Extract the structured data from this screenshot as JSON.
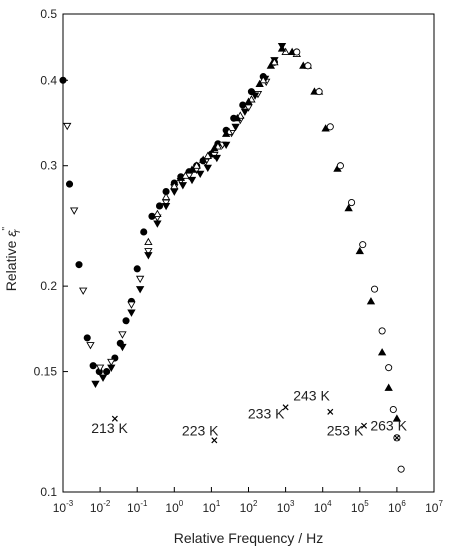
{
  "chart_data": {
    "type": "scatter",
    "title": "",
    "xlabel": "Relative Frequency / Hz",
    "ylabel": "Relative ε''ᵣ",
    "ylabel_parts": {
      "prefix": "Relative ",
      "symbol": "ε",
      "primes": "''",
      "subscript": "r"
    },
    "x_scale": "log",
    "y_scale": "log",
    "xlim": [
      0.001,
      10000000
    ],
    "ylim": [
      0.1,
      0.5
    ],
    "xticks": [
      {
        "value": 0.001,
        "base": "10",
        "exp": "-3"
      },
      {
        "value": 0.01,
        "base": "10",
        "exp": "-2"
      },
      {
        "value": 0.1,
        "base": "10",
        "exp": "-1"
      },
      {
        "value": 1,
        "base": "10",
        "exp": "0"
      },
      {
        "value": 10,
        "base": "10",
        "exp": "1"
      },
      {
        "value": 100,
        "base": "10",
        "exp": "2"
      },
      {
        "value": 1000,
        "base": "10",
        "exp": "3"
      },
      {
        "value": 10000,
        "base": "10",
        "exp": "4"
      },
      {
        "value": 100000,
        "base": "10",
        "exp": "5"
      },
      {
        "value": 1000000,
        "base": "10",
        "exp": "6"
      },
      {
        "value": 10000000,
        "base": "10",
        "exp": "7"
      }
    ],
    "yticks": [
      {
        "value": 0.1,
        "label": "0.1"
      },
      {
        "value": 0.15,
        "label": "0.15"
      },
      {
        "value": 0.2,
        "label": "0.2"
      },
      {
        "value": 0.3,
        "label": "0.3"
      },
      {
        "value": 0.4,
        "label": "0.4"
      },
      {
        "value": 0.5,
        "label": "0.5"
      }
    ],
    "grid": false,
    "legend": "none",
    "series": [
      {
        "marker": "filled-circle",
        "points": [
          [
            0.001,
            0.4
          ],
          [
            0.0015,
            0.282
          ],
          [
            0.0027,
            0.215
          ],
          [
            0.0045,
            0.168
          ],
          [
            0.0065,
            0.153
          ],
          [
            0.0095,
            0.15
          ],
          [
            0.015,
            0.15
          ],
          [
            0.025,
            0.157
          ],
          [
            0.035,
            0.165
          ],
          [
            0.05,
            0.178
          ],
          [
            0.07,
            0.19
          ],
          [
            0.1,
            0.212
          ],
          [
            0.15,
            0.24
          ],
          [
            0.25,
            0.253
          ],
          [
            0.4,
            0.262
          ],
          [
            0.6,
            0.275
          ],
          [
            1,
            0.283
          ],
          [
            1.5,
            0.289
          ],
          [
            2.5,
            0.294
          ],
          [
            4,
            0.3
          ],
          [
            6,
            0.305
          ],
          [
            10,
            0.312
          ],
          [
            15,
            0.323
          ],
          [
            25,
            0.338
          ],
          [
            40,
            0.352
          ],
          [
            70,
            0.368
          ],
          [
            120,
            0.385
          ],
          [
            250,
            0.405
          ],
          [
            500,
            0.425
          ]
        ]
      },
      {
        "marker": "open-triangle-down",
        "points": [
          [
            0.0013,
            0.343
          ],
          [
            0.002,
            0.258
          ],
          [
            0.0035,
            0.197
          ],
          [
            0.0055,
            0.164
          ],
          [
            0.01,
            0.152
          ],
          [
            0.02,
            0.155
          ],
          [
            0.04,
            0.17
          ],
          [
            0.07,
            0.188
          ],
          [
            0.12,
            0.205
          ],
          [
            0.2,
            0.225
          ],
          [
            0.35,
            0.252
          ],
          [
            0.6,
            0.265
          ],
          [
            1,
            0.279
          ],
          [
            1.5,
            0.285
          ],
          [
            2.5,
            0.29
          ],
          [
            4,
            0.296
          ],
          [
            7,
            0.304
          ],
          [
            12,
            0.311
          ],
          [
            20,
            0.322
          ],
          [
            35,
            0.335
          ],
          [
            60,
            0.35
          ],
          [
            100,
            0.365
          ],
          [
            180,
            0.382
          ],
          [
            300,
            0.398
          ]
        ]
      },
      {
        "marker": "filled-triangle-down",
        "points": [
          [
            0.0075,
            0.144
          ],
          [
            0.012,
            0.147
          ],
          [
            0.02,
            0.152
          ],
          [
            0.04,
            0.163
          ],
          [
            0.07,
            0.183
          ],
          [
            0.12,
            0.198
          ],
          [
            0.2,
            0.222
          ],
          [
            0.35,
            0.247
          ],
          [
            0.6,
            0.262
          ],
          [
            1,
            0.275
          ],
          [
            1.7,
            0.281
          ],
          [
            3,
            0.286
          ],
          [
            5,
            0.292
          ],
          [
            8,
            0.298
          ],
          [
            14,
            0.308
          ],
          [
            25,
            0.322
          ],
          [
            45,
            0.342
          ],
          [
            80,
            0.36
          ],
          [
            150,
            0.38
          ],
          [
            280,
            0.402
          ],
          [
            500,
            0.428
          ],
          [
            800,
            0.449
          ]
        ]
      },
      {
        "marker": "open-triangle-up",
        "points": [
          [
            0.2,
            0.232
          ],
          [
            0.35,
            0.255
          ],
          [
            0.6,
            0.27
          ],
          [
            1,
            0.28
          ],
          [
            2,
            0.29
          ],
          [
            4,
            0.3
          ],
          [
            8,
            0.31
          ],
          [
            15,
            0.32
          ],
          [
            30,
            0.336
          ],
          [
            60,
            0.355
          ],
          [
            120,
            0.375
          ],
          [
            250,
            0.4
          ],
          [
            500,
            0.425
          ],
          [
            1000,
            0.44
          ],
          [
            2000,
            0.437
          ],
          [
            4000,
            0.42
          ],
          [
            8000,
            0.385
          ]
        ]
      },
      {
        "marker": "filled-triangle-up",
        "points": [
          [
            1.5,
            0.288
          ],
          [
            3,
            0.296
          ],
          [
            6,
            0.306
          ],
          [
            12,
            0.318
          ],
          [
            25,
            0.334
          ],
          [
            50,
            0.352
          ],
          [
            100,
            0.372
          ],
          [
            200,
            0.395
          ],
          [
            400,
            0.42
          ],
          [
            800,
            0.445
          ],
          [
            1500,
            0.44
          ],
          [
            3000,
            0.42
          ],
          [
            6000,
            0.385
          ],
          [
            12000,
            0.34
          ],
          [
            25000,
            0.297
          ],
          [
            50000,
            0.26
          ],
          [
            100000,
            0.225
          ],
          [
            200000,
            0.19
          ],
          [
            400000,
            0.16
          ],
          [
            600000,
            0.142
          ],
          [
            1000000,
            0.128
          ]
        ]
      },
      {
        "marker": "open-circle",
        "points": [
          [
            2000,
            0.44
          ],
          [
            4000,
            0.42
          ],
          [
            8000,
            0.385
          ],
          [
            16000,
            0.342
          ],
          [
            30000,
            0.3
          ],
          [
            60000,
            0.265
          ],
          [
            120000,
            0.23
          ],
          [
            250000,
            0.198
          ],
          [
            400000,
            0.172
          ],
          [
            600000,
            0.152
          ],
          [
            800000,
            0.132
          ],
          [
            1000000,
            0.12
          ],
          [
            1300000,
            0.108
          ]
        ]
      },
      {
        "marker": "cross",
        "points": [
          [
            0.025,
            0.128
          ],
          [
            12,
            0.119
          ],
          [
            1000,
            0.133
          ],
          [
            16000,
            0.131
          ],
          [
            130000,
            0.125
          ],
          [
            1000000,
            0.12
          ]
        ]
      }
    ],
    "annotations": [
      {
        "text": "213 K",
        "x": 0.018,
        "y": 0.122
      },
      {
        "text": "223 K",
        "x": 5,
        "y": 0.121
      },
      {
        "text": "233 K",
        "x": 300,
        "y": 0.128
      },
      {
        "text": "243 K",
        "x": 5000,
        "y": 0.136
      },
      {
        "text": "253 K",
        "x": 40000,
        "y": 0.121
      },
      {
        "text": "263 K",
        "x": 600000,
        "y": 0.123
      }
    ]
  }
}
